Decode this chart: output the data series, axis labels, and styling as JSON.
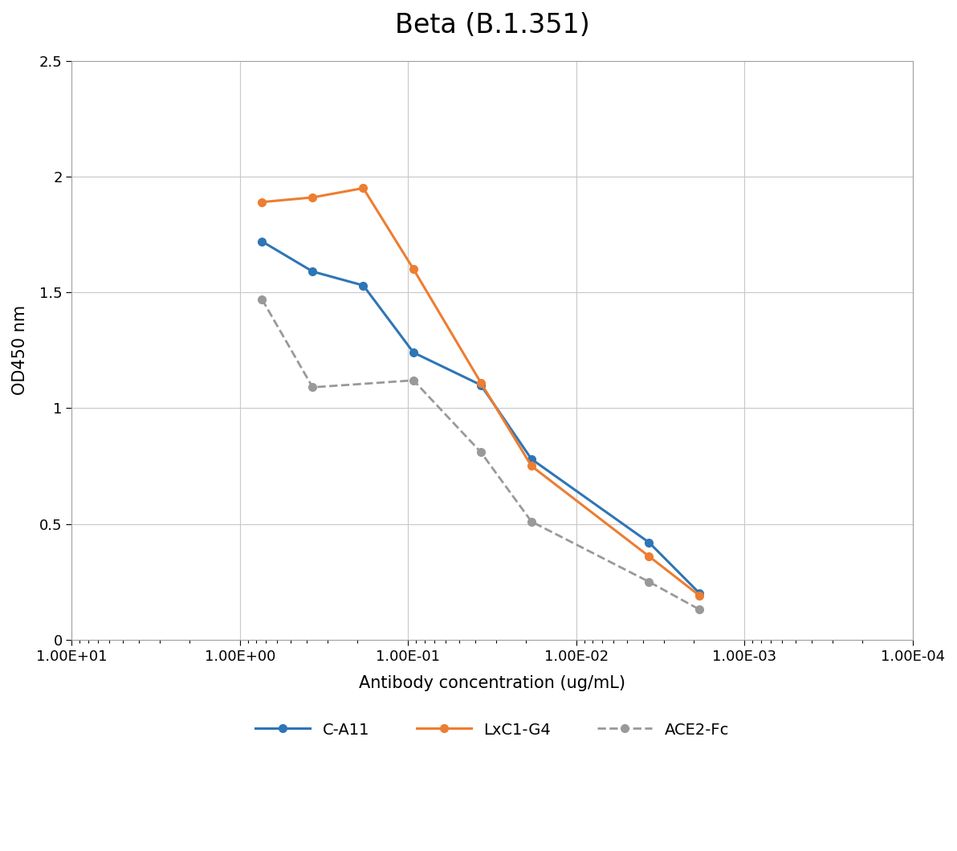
{
  "title": "Beta (B.1.351)",
  "xlabel": "Antibody concentration (ug/mL)",
  "ylabel": "OD450 nm",
  "ylim": [
    0,
    2.5
  ],
  "yticks": [
    0,
    0.5,
    1.0,
    1.5,
    2.0,
    2.5
  ],
  "xtick_vals": [
    10.0,
    1.0,
    0.1,
    0.01,
    0.001,
    0.0001
  ],
  "xtick_labels": [
    "1.00E+01",
    "1.00E+00",
    "1.00E-01",
    "1.00E-02",
    "1.00E-03",
    "1.00E-04"
  ],
  "xmin": 10.0,
  "xmax": 0.0001,
  "series": {
    "C-A11": {
      "x": [
        0.74,
        0.37,
        0.185,
        0.093,
        0.037,
        0.0185,
        0.0037,
        0.00185
      ],
      "y": [
        1.72,
        1.59,
        1.53,
        1.24,
        1.1,
        0.78,
        0.42,
        0.2
      ],
      "color": "#2E75B6",
      "linestyle": "-",
      "marker": "o",
      "linewidth": 2.2,
      "markersize": 7,
      "label": "C-A11"
    },
    "LxC1-G4": {
      "x": [
        0.74,
        0.37,
        0.185,
        0.093,
        0.037,
        0.0185,
        0.0037,
        0.00185
      ],
      "y": [
        1.89,
        1.91,
        1.95,
        1.6,
        1.11,
        0.75,
        0.36,
        0.19
      ],
      "color": "#ED7D31",
      "linestyle": "-",
      "marker": "o",
      "linewidth": 2.2,
      "markersize": 7,
      "label": "LxC1-G4"
    },
    "ACE2-Fc": {
      "x": [
        0.74,
        0.37,
        0.093,
        0.037,
        0.0185,
        0.0037,
        0.00185
      ],
      "y": [
        1.47,
        1.09,
        1.12,
        0.81,
        0.51,
        0.25,
        0.13
      ],
      "color": "#999999",
      "linestyle": "--",
      "marker": "o",
      "linewidth": 2.0,
      "markersize": 7,
      "label": "ACE2-Fc"
    }
  },
  "legend_order": [
    "C-A11",
    "LxC1-G4",
    "ACE2-Fc"
  ],
  "background_color": "#ffffff",
  "plot_bg_color": "#ffffff",
  "grid_color": "#C8C8C8",
  "spine_color": "#A0A0A0",
  "title_fontsize": 24,
  "axis_label_fontsize": 15,
  "tick_fontsize": 13,
  "legend_fontsize": 14
}
